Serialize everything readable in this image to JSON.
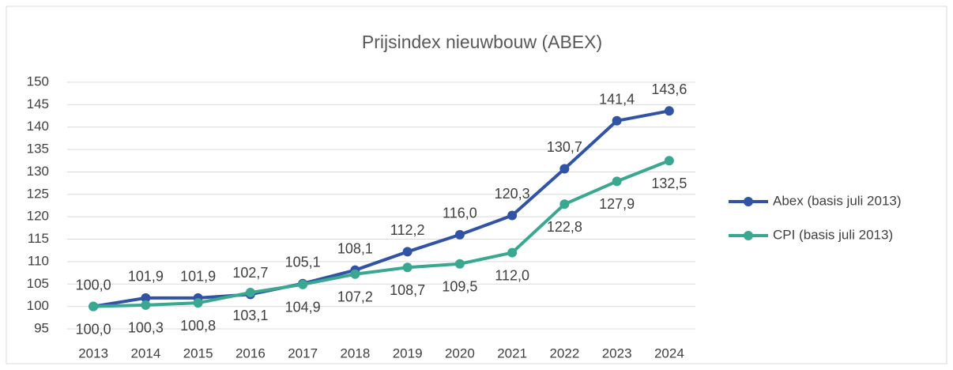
{
  "chart_data": {
    "type": "line",
    "title": "Prijsindex nieuwbouw (ABEX)",
    "categories": [
      "2013",
      "2014",
      "2015",
      "2016",
      "2017",
      "2018",
      "2019",
      "2020",
      "2021",
      "2022",
      "2023",
      "2024"
    ],
    "series": [
      {
        "name": "Abex (basis juli 2013)",
        "color": "#3153a6",
        "values": [
          100.0,
          101.9,
          101.9,
          102.7,
          105.1,
          108.1,
          112.2,
          116.0,
          120.3,
          130.7,
          141.4,
          143.6
        ],
        "value_labels": [
          "100,0",
          "101,9",
          "101,9",
          "102,7",
          "105,1",
          "108,1",
          "112,2",
          "116,0",
          "120,3",
          "130,7",
          "141,4",
          "143,6"
        ]
      },
      {
        "name": "CPI (basis juli 2013)",
        "color": "#3aa891",
        "values": [
          100.0,
          100.3,
          100.8,
          103.1,
          104.9,
          107.2,
          108.7,
          109.5,
          112.0,
          122.8,
          127.9,
          132.5
        ],
        "value_labels": [
          "100,0",
          "100,3",
          "100,8",
          "103,1",
          "104,9",
          "107,2",
          "108,7",
          "109,5",
          "112,0",
          "122,8",
          "127,9",
          "132,5"
        ]
      }
    ],
    "ylim": [
      95,
      150
    ],
    "yticks": [
      95,
      100,
      105,
      110,
      115,
      120,
      125,
      130,
      135,
      140,
      145,
      150
    ],
    "grid": true,
    "legend": "right"
  }
}
